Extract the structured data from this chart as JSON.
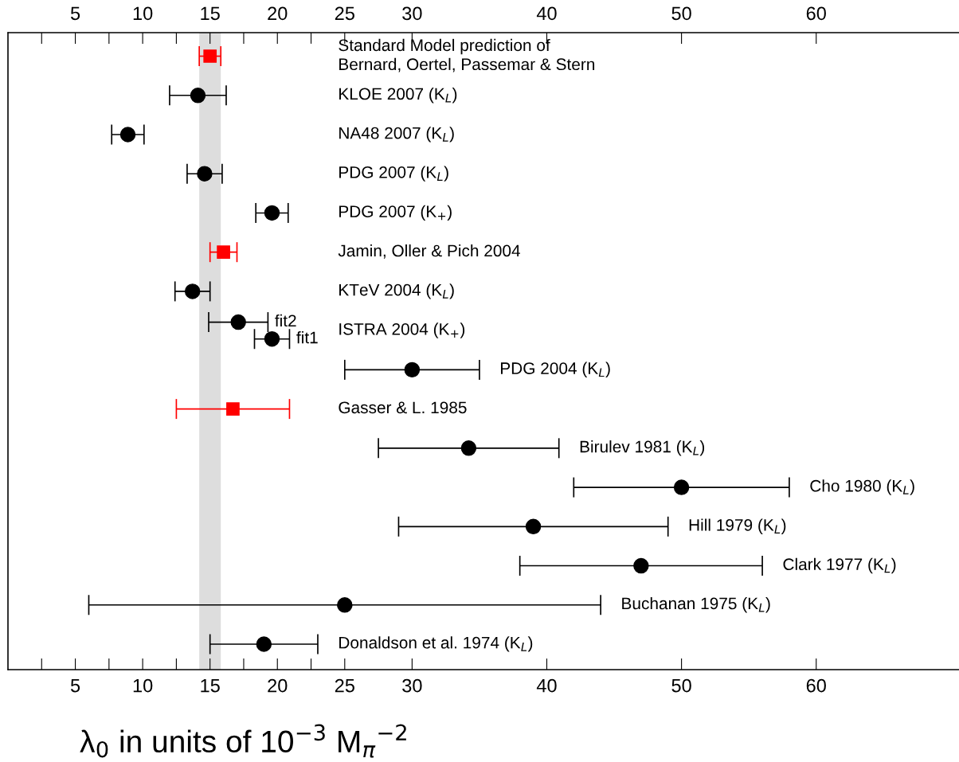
{
  "chart_data": {
    "type": "scatter",
    "orientation": "horizontal",
    "categories": [
      "Standard Model prediction of\nBernard, Oertel, Passemar & Stern",
      "KLOE 2007 (K$_{L}$)",
      "NA48 2007 (K$_{L}$)",
      "PDG 2007 (K$_{L}$)",
      "PDG 2007 (K$_{+}$)",
      "Jamin, Oller & Pich 2004",
      "KTeV 2004 (K$_{L}$)",
      "ISTRA 2004 (K$_{+}$)",
      "PDG 2004 (K$_{L}$)",
      "Gasser & L. 1985",
      "Birulev 1981 (K$_{L}$)",
      "Cho 1980 (K$_{L}$)",
      "Hill 1979 (K$_{L}$)",
      "Clark 1977 (K$_{L}$)",
      "Buchanan 1975 (K$_{L}$)",
      "Donaldson et al. 1974 (K$_{L}$)"
    ],
    "series": [
      {
        "color": "#000000",
        "marker": "circle",
        "values": [
          null,
          14.1,
          8.9,
          14.6,
          19.6,
          null,
          13.7,
          null,
          30,
          null,
          34.2,
          50,
          39,
          47,
          25,
          19
        ],
        "errors": [
          null,
          2.1,
          1.2,
          1.3,
          1.2,
          null,
          1.3,
          null,
          5,
          null,
          6.7,
          8,
          10,
          9,
          19,
          4
        ]
      },
      {
        "color": "#ff0000",
        "marker": "square",
        "values": [
          15.0,
          null,
          null,
          null,
          null,
          16.0,
          null,
          null,
          null,
          16.7,
          null,
          null,
          null,
          null,
          null,
          null
        ],
        "errors": [
          0.8,
          null,
          null,
          null,
          null,
          1.0,
          null,
          null,
          null,
          4.2,
          null,
          null,
          null,
          null,
          null,
          null
        ]
      },
      {
        "name": "fit2",
        "color": "#000000",
        "marker": "circle",
        "values": [
          null,
          null,
          null,
          null,
          null,
          null,
          null,
          17.1,
          null,
          null,
          null,
          null,
          null,
          null,
          null,
          null
        ],
        "errors": [
          null,
          null,
          null,
          null,
          null,
          null,
          null,
          2.2,
          null,
          null,
          null,
          null,
          null,
          null,
          null,
          null
        ]
      },
      {
        "name": "fit1",
        "color": "#000000",
        "marker": "circle",
        "values": [
          null,
          null,
          null,
          null,
          null,
          null,
          null,
          19.6,
          null,
          null,
          null,
          null,
          null,
          null,
          null,
          null
        ],
        "errors": [
          null,
          null,
          null,
          null,
          null,
          null,
          null,
          1.3,
          null,
          null,
          null,
          null,
          null,
          null,
          null,
          null
        ]
      }
    ],
    "xlabel": "λ$_{0}$ in units of 10$^{−3}$ M$_{π}$$^{−2}$",
    "xlim": [
      0,
      70.6
    ],
    "x2lim": [
      0,
      70.6
    ],
    "xticks": [
      {
        "value": 2.5,
        "label": null
      },
      5,
      {
        "value": 7.5,
        "label": null
      },
      10,
      {
        "value": 12.5,
        "label": null
      },
      15,
      {
        "value": 17.5,
        "label": null
      },
      20,
      {
        "value": 22.5,
        "label": null
      },
      25,
      30,
      40,
      50,
      60
    ],
    "x2ticks": [
      {
        "value": 2.5,
        "label": null
      },
      5,
      {
        "value": 7.5,
        "label": null
      },
      10,
      {
        "value": 12.5,
        "label": null
      },
      15,
      {
        "value": 17.5,
        "label": null
      },
      20,
      {
        "value": 22.5,
        "label": null
      },
      25,
      30,
      40,
      50,
      60
    ],
    "bands": [
      {
        "axis": "x",
        "from": 14.2,
        "to": 15.8,
        "color": "#dddddd"
      }
    ],
    "grid": false,
    "legend": false
  }
}
